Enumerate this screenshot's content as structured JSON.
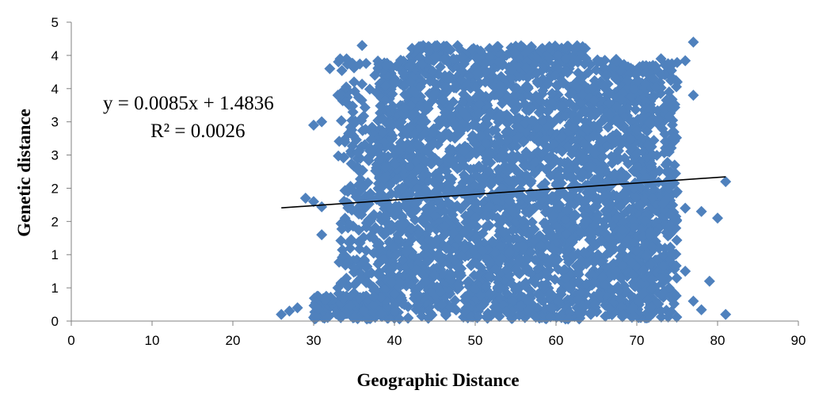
{
  "chart_data": {
    "type": "scatter",
    "title": "",
    "xlabel": "Geographic Distance",
    "ylabel": "Genetic distance",
    "xlim": [
      0,
      90
    ],
    "ylim": [
      0,
      4.5
    ],
    "x_ticks": [
      "0",
      "10",
      "20",
      "30",
      "40",
      "50",
      "60",
      "70",
      "80",
      "90"
    ],
    "y_ticks": [
      "0",
      "1",
      "1",
      "2",
      "2",
      "3",
      "3",
      "4",
      "4",
      "5"
    ],
    "grid": false,
    "legend": "none",
    "marker": "diamond",
    "marker_color": "#4F81BD",
    "series": [
      {
        "description_points": [
          [
            26,
            0.1
          ],
          [
            27,
            0.15
          ],
          [
            28,
            0.2
          ],
          [
            29,
            1.85
          ],
          [
            30,
            1.8
          ],
          [
            31,
            1.3
          ],
          [
            31,
            1.72
          ],
          [
            32,
            3.8
          ],
          [
            30,
            2.95
          ],
          [
            31,
            3.0
          ],
          [
            33,
            3.4
          ],
          [
            34,
            3.3
          ],
          [
            35,
            3.6
          ],
          [
            36,
            4.15
          ],
          [
            36,
            1.8
          ],
          [
            37,
            1.5
          ],
          [
            38,
            2.0
          ],
          [
            38,
            0.7
          ],
          [
            39,
            3.85
          ],
          [
            33,
            0.5
          ],
          [
            72,
            3.85
          ],
          [
            73,
            3.95
          ],
          [
            74,
            3.45
          ],
          [
            75,
            3.6
          ],
          [
            76,
            3.92
          ],
          [
            77,
            4.2
          ],
          [
            77,
            3.4
          ],
          [
            72,
            2.5
          ],
          [
            74,
            2.0
          ],
          [
            75,
            1.95
          ],
          [
            76,
            1.7
          ],
          [
            78,
            1.65
          ],
          [
            79,
            0.6
          ],
          [
            78,
            0.17
          ],
          [
            81,
            0.1
          ],
          [
            80,
            1.55
          ],
          [
            81,
            2.1
          ],
          [
            77,
            0.3
          ],
          [
            76,
            0.75
          ],
          [
            74,
            0.5
          ],
          [
            73,
            0.15
          ]
        ]
      }
    ],
    "trendline": {
      "equation": "y = 0.0085x + 1.4836",
      "r_squared": "R² = 0.0026",
      "slope": 0.0085,
      "intercept": 1.4836,
      "x_start": 26,
      "x_end": 81,
      "color": "#000000"
    }
  }
}
